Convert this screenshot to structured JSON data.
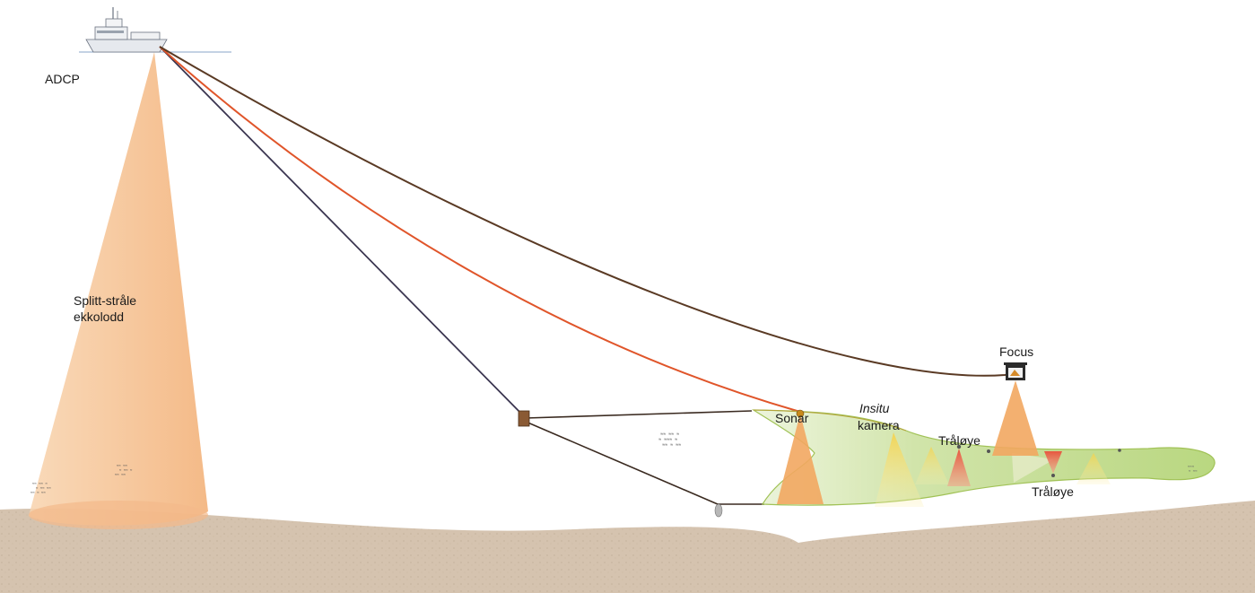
{
  "labels": {
    "adcp": "ADCP",
    "echo_line1": "Splitt-stråle",
    "echo_line2": "ekkolodd",
    "focus": "Focus",
    "sonar": "Sonar",
    "insitu": "Insitu",
    "kamera": "kamera",
    "traloye_upper": "Tråløye",
    "traloye_lower": "Tråløye"
  },
  "colors": {
    "sky": "#ffffff",
    "sea_line": "#8aa4c8",
    "seabed": "#d3c1ad",
    "seabed_dark": "#b9a48d",
    "echo_beam": "#f6c28f",
    "cable_dark": "#3a3550",
    "cable_red": "#e0552a",
    "cable_brown": "#5a3a24",
    "trawl_fill": "#cfe3a6",
    "trawl_edge": "#9cbf4e",
    "sonar_beam": "#f2a760",
    "camera_beam": "#f6e07a",
    "traloye_red": "#e2704e"
  },
  "icons": {
    "ship": "research-vessel-icon",
    "focus": "focus-towed-vehicle-icon",
    "doors": "trawl-door-icon"
  }
}
